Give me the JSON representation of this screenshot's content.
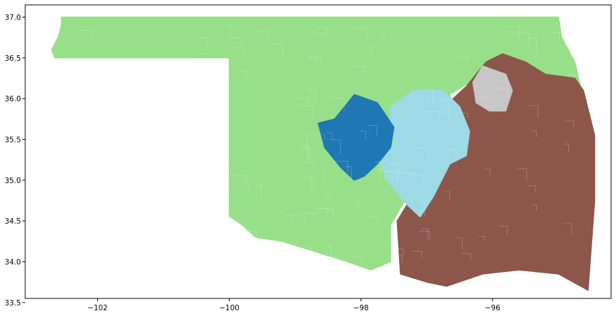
{
  "chart_data": {
    "type": "map",
    "xlim": [
      -103.1,
      -94.2
    ],
    "ylim": [
      33.55,
      37.15
    ],
    "x_ticks": [
      -102,
      -100,
      -98,
      -96
    ],
    "y_ticks": [
      33.5,
      34.0,
      34.5,
      35.0,
      35.5,
      36.0,
      36.5,
      37.0
    ],
    "x_tick_labels": [
      "−102",
      "−100",
      "−98",
      "−96"
    ],
    "y_tick_labels": [
      "33.5",
      "34.0",
      "34.5",
      "35.0",
      "35.5",
      "36.0",
      "36.5",
      "37.0"
    ],
    "regions": [
      {
        "id": "green-district",
        "color": "#98df8a",
        "outline": [
          [
            -102.55,
            37.0
          ],
          [
            -95.0,
            37.0
          ],
          [
            -94.95,
            36.75
          ],
          [
            -94.75,
            36.45
          ],
          [
            -94.65,
            36.1
          ],
          [
            -95.2,
            36.1
          ],
          [
            -95.7,
            36.15
          ],
          [
            -96.2,
            36.35
          ],
          [
            -96.35,
            36.2
          ],
          [
            -96.65,
            36.05
          ],
          [
            -96.55,
            35.55
          ],
          [
            -97.3,
            34.8
          ],
          [
            -97.55,
            34.45
          ],
          [
            -97.55,
            34.0
          ],
          [
            -97.85,
            33.9
          ],
          [
            -98.2,
            34.0
          ],
          [
            -98.6,
            34.1
          ],
          [
            -99.2,
            34.25
          ],
          [
            -99.6,
            34.3
          ],
          [
            -99.8,
            34.45
          ],
          [
            -100.0,
            34.56
          ],
          [
            -100.0,
            36.5
          ],
          [
            -102.65,
            36.5
          ],
          [
            -102.7,
            36.6
          ],
          [
            -102.6,
            36.75
          ],
          [
            -102.55,
            36.9
          ]
        ]
      },
      {
        "id": "brown-district",
        "color": "#8c564b",
        "outline": [
          [
            -96.4,
            36.15
          ],
          [
            -96.1,
            36.45
          ],
          [
            -95.85,
            36.55
          ],
          [
            -95.5,
            36.45
          ],
          [
            -95.2,
            36.3
          ],
          [
            -94.75,
            36.25
          ],
          [
            -94.62,
            36.1
          ],
          [
            -94.45,
            35.55
          ],
          [
            -94.45,
            34.75
          ],
          [
            -94.55,
            33.65
          ],
          [
            -95.0,
            33.85
          ],
          [
            -95.6,
            33.9
          ],
          [
            -96.15,
            33.85
          ],
          [
            -96.7,
            33.7
          ],
          [
            -97.0,
            33.75
          ],
          [
            -97.4,
            33.85
          ],
          [
            -97.45,
            34.5
          ],
          [
            -97.3,
            34.7
          ],
          [
            -96.95,
            35.0
          ],
          [
            -96.75,
            35.3
          ],
          [
            -96.6,
            35.5
          ],
          [
            -96.6,
            36.0
          ]
        ]
      },
      {
        "id": "light-blue-district",
        "color": "#9edae5",
        "outline": [
          [
            -97.55,
            35.9
          ],
          [
            -97.2,
            36.1
          ],
          [
            -96.75,
            36.1
          ],
          [
            -96.5,
            35.9
          ],
          [
            -96.35,
            35.6
          ],
          [
            -96.4,
            35.3
          ],
          [
            -96.65,
            35.2
          ],
          [
            -96.9,
            34.8
          ],
          [
            -97.1,
            34.55
          ],
          [
            -97.3,
            34.7
          ],
          [
            -97.6,
            35.0
          ],
          [
            -97.7,
            35.2
          ],
          [
            -97.5,
            35.45
          ],
          [
            -97.55,
            35.7
          ]
        ]
      },
      {
        "id": "dark-blue-district",
        "color": "#1f77b4",
        "outline": [
          [
            -98.1,
            36.05
          ],
          [
            -97.75,
            35.95
          ],
          [
            -97.5,
            35.65
          ],
          [
            -97.55,
            35.4
          ],
          [
            -97.75,
            35.2
          ],
          [
            -97.95,
            35.05
          ],
          [
            -98.1,
            35.0
          ],
          [
            -98.3,
            35.15
          ],
          [
            -98.55,
            35.4
          ],
          [
            -98.65,
            35.7
          ],
          [
            -98.4,
            35.75
          ]
        ]
      },
      {
        "id": "gray-district",
        "color": "#c7c7c7",
        "outline": [
          [
            -96.15,
            36.4
          ],
          [
            -95.8,
            36.3
          ],
          [
            -95.7,
            36.1
          ],
          [
            -95.8,
            35.85
          ],
          [
            -96.05,
            35.85
          ],
          [
            -96.25,
            35.95
          ],
          [
            -96.3,
            36.2
          ]
        ]
      }
    ]
  }
}
